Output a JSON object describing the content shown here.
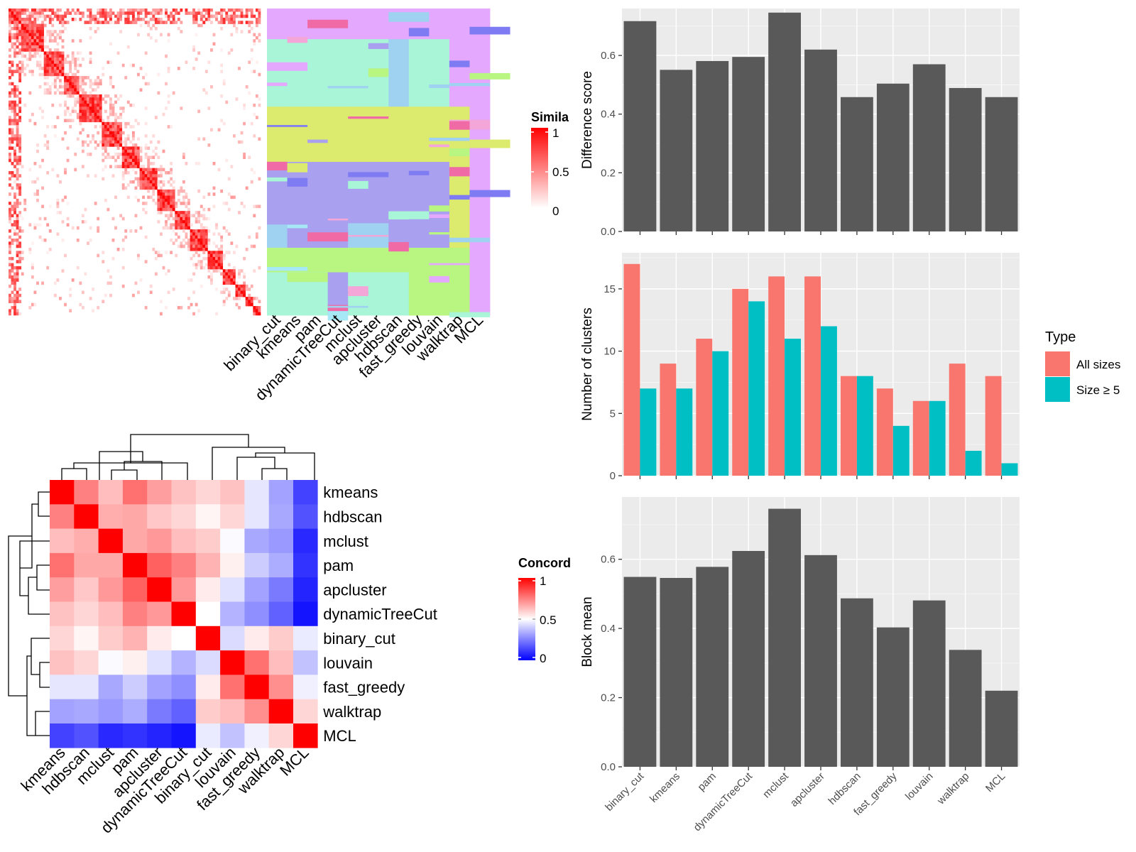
{
  "chart_data": [
    {
      "id": "similarity-heatmap",
      "type": "heatmap",
      "legend": {
        "title": "Simila",
        "ticks": [
          "1",
          "0.5",
          "0"
        ],
        "low_color": "#ffffff",
        "high_color": "#ff0000"
      },
      "column_labels": [
        "binary_cut",
        "kmeans",
        "pam",
        "dynamicTreeCut",
        "mclust",
        "apcluster",
        "hdbscan",
        "fast_greedy",
        "louvain",
        "walktrap",
        "MCL"
      ]
    },
    {
      "id": "concordance-heatmap",
      "type": "heatmap",
      "legend": {
        "title": "Concord",
        "ticks": [
          "1",
          "0.5",
          "0"
        ],
        "low_color": "#0000ff",
        "mid_color": "#ffffff",
        "high_color": "#ff0000"
      },
      "labels": [
        "kmeans",
        "hdbscan",
        "mclust",
        "pam",
        "apcluster",
        "dynamicTreeCut",
        "binary_cut",
        "louvain",
        "fast_greedy",
        "walktrap",
        "MCL"
      ],
      "matrix": [
        [
          1.0,
          0.75,
          0.63,
          0.78,
          0.69,
          0.62,
          0.58,
          0.62,
          0.45,
          0.32,
          0.13
        ],
        [
          0.75,
          1.0,
          0.66,
          0.67,
          0.61,
          0.58,
          0.52,
          0.58,
          0.45,
          0.33,
          0.16
        ],
        [
          0.63,
          0.66,
          1.0,
          0.67,
          0.7,
          0.63,
          0.6,
          0.49,
          0.33,
          0.3,
          0.08
        ],
        [
          0.78,
          0.67,
          0.67,
          1.0,
          0.81,
          0.75,
          0.65,
          0.53,
          0.4,
          0.34,
          0.1
        ],
        [
          0.69,
          0.61,
          0.7,
          0.81,
          1.0,
          0.7,
          0.54,
          0.44,
          0.32,
          0.24,
          0.07
        ],
        [
          0.62,
          0.58,
          0.63,
          0.75,
          0.7,
          1.0,
          0.5,
          0.35,
          0.28,
          0.19,
          0.04
        ],
        [
          0.58,
          0.52,
          0.6,
          0.65,
          0.54,
          0.5,
          1.0,
          0.43,
          0.54,
          0.6,
          0.46
        ],
        [
          0.62,
          0.58,
          0.49,
          0.53,
          0.44,
          0.35,
          0.43,
          1.0,
          0.78,
          0.63,
          0.38
        ],
        [
          0.45,
          0.45,
          0.33,
          0.4,
          0.32,
          0.28,
          0.54,
          0.78,
          1.0,
          0.72,
          0.47
        ],
        [
          0.32,
          0.33,
          0.3,
          0.34,
          0.24,
          0.19,
          0.6,
          0.63,
          0.72,
          1.0,
          0.58
        ],
        [
          0.13,
          0.16,
          0.08,
          0.1,
          0.07,
          0.04,
          0.46,
          0.38,
          0.47,
          0.58,
          1.0
        ]
      ]
    },
    {
      "id": "difference-score",
      "type": "bar",
      "categories": [
        "binary_cut",
        "kmeans",
        "pam",
        "dynamicTreeCut",
        "mclust",
        "apcluster",
        "hdbscan",
        "fast_greedy",
        "louvain",
        "walktrap",
        "MCL"
      ],
      "values": [
        0.717,
        0.551,
        0.581,
        0.595,
        0.746,
        0.62,
        0.458,
        0.504,
        0.57,
        0.489,
        0.458
      ],
      "ylabel": "Difference score",
      "ylim": [
        0,
        0.76
      ],
      "yticks": [
        "0.0",
        "0.2",
        "0.4",
        "0.6"
      ],
      "show_x_labels": false
    },
    {
      "id": "number-of-clusters",
      "type": "bar",
      "categories": [
        "binary_cut",
        "kmeans",
        "pam",
        "dynamicTreeCut",
        "mclust",
        "apcluster",
        "hdbscan",
        "fast_greedy",
        "louvain",
        "walktrap",
        "MCL"
      ],
      "series": [
        {
          "name": "All sizes",
          "color": "#F8766D",
          "values": [
            17,
            9,
            11,
            15,
            16,
            16,
            8,
            7,
            6,
            9,
            8
          ]
        },
        {
          "name": "Size ≥ 5",
          "color": "#00BFC4",
          "values": [
            7,
            7,
            10,
            14,
            11,
            12,
            8,
            4,
            6,
            2,
            1
          ]
        }
      ],
      "ylabel": "Number of clusters",
      "ylim": [
        0,
        17.9
      ],
      "yticks": [
        "0",
        "5",
        "10",
        "15"
      ],
      "legend": {
        "title": "Type",
        "position": "right"
      },
      "show_x_labels": false
    },
    {
      "id": "block-mean",
      "type": "bar",
      "categories": [
        "binary_cut",
        "kmeans",
        "pam",
        "dynamicTreeCut",
        "mclust",
        "apcluster",
        "hdbscan",
        "fast_greedy",
        "louvain",
        "walktrap",
        "MCL"
      ],
      "values": [
        0.549,
        0.546,
        0.578,
        0.624,
        0.746,
        0.612,
        0.487,
        0.403,
        0.481,
        0.338,
        0.22
      ],
      "ylabel": "Block mean",
      "ylim": [
        0,
        0.78
      ],
      "yticks": [
        "0.0",
        "0.2",
        "0.4",
        "0.6"
      ],
      "show_x_labels": true
    }
  ]
}
